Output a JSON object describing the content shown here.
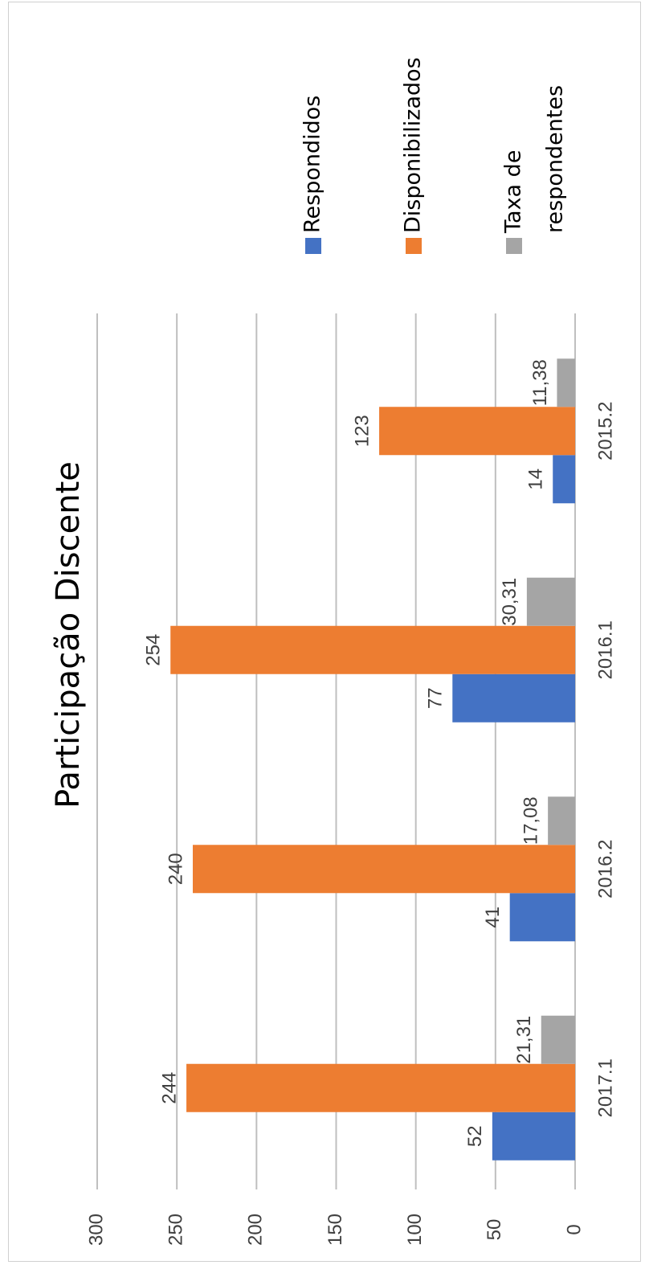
{
  "chart_data": {
    "type": "bar",
    "orientation": "rotated-90",
    "title": "Participação Discente",
    "categories": [
      "2015.2",
      "2016.1",
      "2016.2",
      "2017.1"
    ],
    "series": [
      {
        "name": "Respondidos",
        "values": [
          14,
          77,
          41,
          52
        ],
        "labels": [
          "14",
          "77",
          "41",
          "52"
        ],
        "color": "#4472c4"
      },
      {
        "name": "Disponibilizados",
        "values": [
          123,
          254,
          240,
          244
        ],
        "labels": [
          "123",
          "254",
          "240",
          "244"
        ],
        "color": "#ed7d31"
      },
      {
        "name": "Taxa de respondentes",
        "legend_lines": [
          "Taxa de",
          "respondentes"
        ],
        "values": [
          11.38,
          30.31,
          17.08,
          21.31
        ],
        "labels": [
          "11,38",
          "30,31",
          "17,08",
          "21,31"
        ],
        "color": "#a5a5a5"
      }
    ],
    "value_axis": {
      "min": 0,
      "max": 300,
      "ticks": [
        0,
        50,
        100,
        150,
        200,
        250,
        300
      ]
    },
    "grid": true,
    "gridline_color": "#bfbfbf",
    "legend_position": "right"
  }
}
